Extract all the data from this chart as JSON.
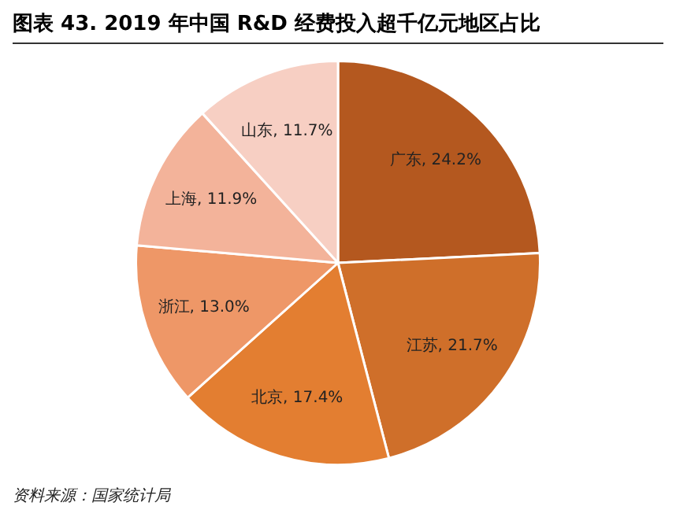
{
  "chart_data": {
    "type": "pie",
    "title": "图表 43. 2019 年中国 R&D 经费投入超千亿元地区占比",
    "categories": [
      "广东",
      "江苏",
      "北京",
      "浙江",
      "上海",
      "山东"
    ],
    "values": [
      24.2,
      21.7,
      17.4,
      13.0,
      11.9,
      11.7
    ],
    "value_labels": [
      "24.2%",
      "21.7%",
      "17.4%",
      "13.0%",
      "11.9%",
      "11.7%"
    ],
    "colors": [
      "#b4581f",
      "#cf6f2a",
      "#e37e31",
      "#ee9767",
      "#f3b39a",
      "#f7cfc3"
    ],
    "legend": false,
    "annotations": [
      "资料来源：国家统计局"
    ]
  }
}
